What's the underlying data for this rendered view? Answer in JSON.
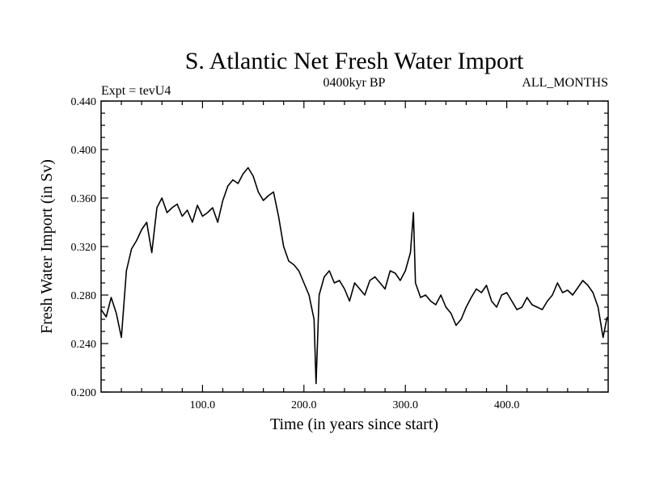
{
  "chart_data": {
    "type": "line",
    "title": "S. Atlantic Net Fresh Water Import",
    "subtitle_left": "Expt = tevU4",
    "subtitle_center": "0400kyr BP",
    "subtitle_right": "ALL_MONTHS",
    "xlabel": "Time (in years since start)",
    "ylabel": "Fresh Water Import (in Sv)",
    "xlim": [
      0,
      500
    ],
    "ylim": [
      0.2,
      0.44
    ],
    "x_ticks": [
      100,
      200,
      300,
      400
    ],
    "x_tick_labels": [
      "100.0",
      "200.0",
      "300.0",
      "400.0"
    ],
    "y_ticks": [
      0.2,
      0.24,
      0.28,
      0.32,
      0.36,
      0.4,
      0.44
    ],
    "y_tick_labels": [
      "0.200",
      "0.240",
      "0.280",
      "0.320",
      "0.360",
      "0.400",
      "0.440"
    ],
    "grid": false,
    "legend": "none",
    "line_color": "#000000",
    "series": [
      {
        "x": [
          0,
          5,
          10,
          15,
          20,
          25,
          30,
          35,
          40,
          45,
          50,
          55,
          60,
          65,
          70,
          75,
          80,
          85,
          90,
          95,
          100,
          105,
          110,
          115,
          120,
          125,
          130,
          135,
          140,
          145,
          150,
          155,
          160,
          165,
          170,
          175,
          180,
          185,
          190,
          195,
          200,
          205,
          210,
          212,
          215,
          220,
          225,
          230,
          235,
          240,
          245,
          250,
          255,
          260,
          265,
          270,
          275,
          280,
          285,
          290,
          295,
          300,
          305,
          308,
          310,
          315,
          320,
          325,
          330,
          335,
          340,
          345,
          350,
          355,
          360,
          365,
          370,
          375,
          380,
          385,
          390,
          395,
          400,
          405,
          410,
          415,
          420,
          425,
          430,
          435,
          440,
          445,
          450,
          455,
          460,
          465,
          470,
          475,
          480,
          485,
          490,
          495,
          499
        ],
        "y": [
          0.268,
          0.262,
          0.278,
          0.265,
          0.245,
          0.3,
          0.318,
          0.325,
          0.334,
          0.34,
          0.315,
          0.352,
          0.36,
          0.348,
          0.352,
          0.355,
          0.345,
          0.35,
          0.34,
          0.354,
          0.345,
          0.348,
          0.352,
          0.34,
          0.358,
          0.37,
          0.375,
          0.372,
          0.38,
          0.385,
          0.378,
          0.365,
          0.358,
          0.362,
          0.365,
          0.345,
          0.32,
          0.308,
          0.305,
          0.3,
          0.29,
          0.28,
          0.26,
          0.207,
          0.28,
          0.295,
          0.3,
          0.29,
          0.292,
          0.285,
          0.275,
          0.29,
          0.285,
          0.28,
          0.292,
          0.295,
          0.29,
          0.285,
          0.3,
          0.298,
          0.292,
          0.3,
          0.315,
          0.348,
          0.29,
          0.278,
          0.28,
          0.275,
          0.272,
          0.28,
          0.27,
          0.265,
          0.255,
          0.26,
          0.27,
          0.278,
          0.285,
          0.282,
          0.288,
          0.275,
          0.27,
          0.28,
          0.282,
          0.275,
          0.268,
          0.27,
          0.278,
          0.272,
          0.27,
          0.268,
          0.275,
          0.28,
          0.29,
          0.282,
          0.284,
          0.28,
          0.286,
          0.292,
          0.288,
          0.282,
          0.27,
          0.245,
          0.262
        ]
      }
    ]
  }
}
